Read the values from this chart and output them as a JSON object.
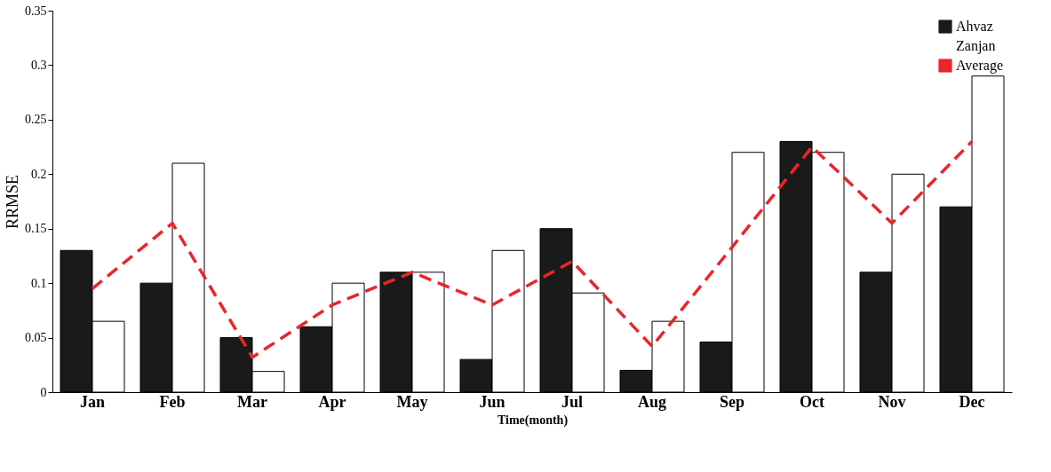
{
  "chart_data": {
    "type": "bar",
    "xlabel": "Time(month)",
    "ylabel": "RRMSE",
    "categories": [
      "Jan",
      "Feb",
      "Mar",
      "Apr",
      "May",
      "Jun",
      "Jul",
      "Aug",
      "Sep",
      "Oct",
      "Nov",
      "Dec"
    ],
    "series": [
      {
        "name": "Ahvaz",
        "color": "#1a1a1a",
        "values": [
          0.13,
          0.1,
          0.05,
          0.06,
          0.11,
          0.03,
          0.15,
          0.02,
          0.046,
          0.23,
          0.11,
          0.17
        ]
      },
      {
        "name": "Zanjan",
        "color": "#ffffff",
        "values": [
          0.065,
          0.21,
          0.019,
          0.1,
          0.11,
          0.13,
          0.091,
          0.065,
          0.22,
          0.22,
          0.2,
          0.29
        ]
      },
      {
        "name": "Average",
        "type": "line",
        "line_style": "dashed",
        "color": "#e8262b",
        "values": [
          0.095,
          0.155,
          0.032,
          0.08,
          0.11,
          0.08,
          0.12,
          0.042,
          0.133,
          0.225,
          0.155,
          0.23
        ]
      }
    ],
    "ylim": [
      0,
      0.35
    ],
    "yticks": [
      0,
      0.05,
      0.1,
      0.15,
      0.2,
      0.25,
      0.3,
      0.35
    ],
    "grid": false,
    "legend": "top right"
  }
}
